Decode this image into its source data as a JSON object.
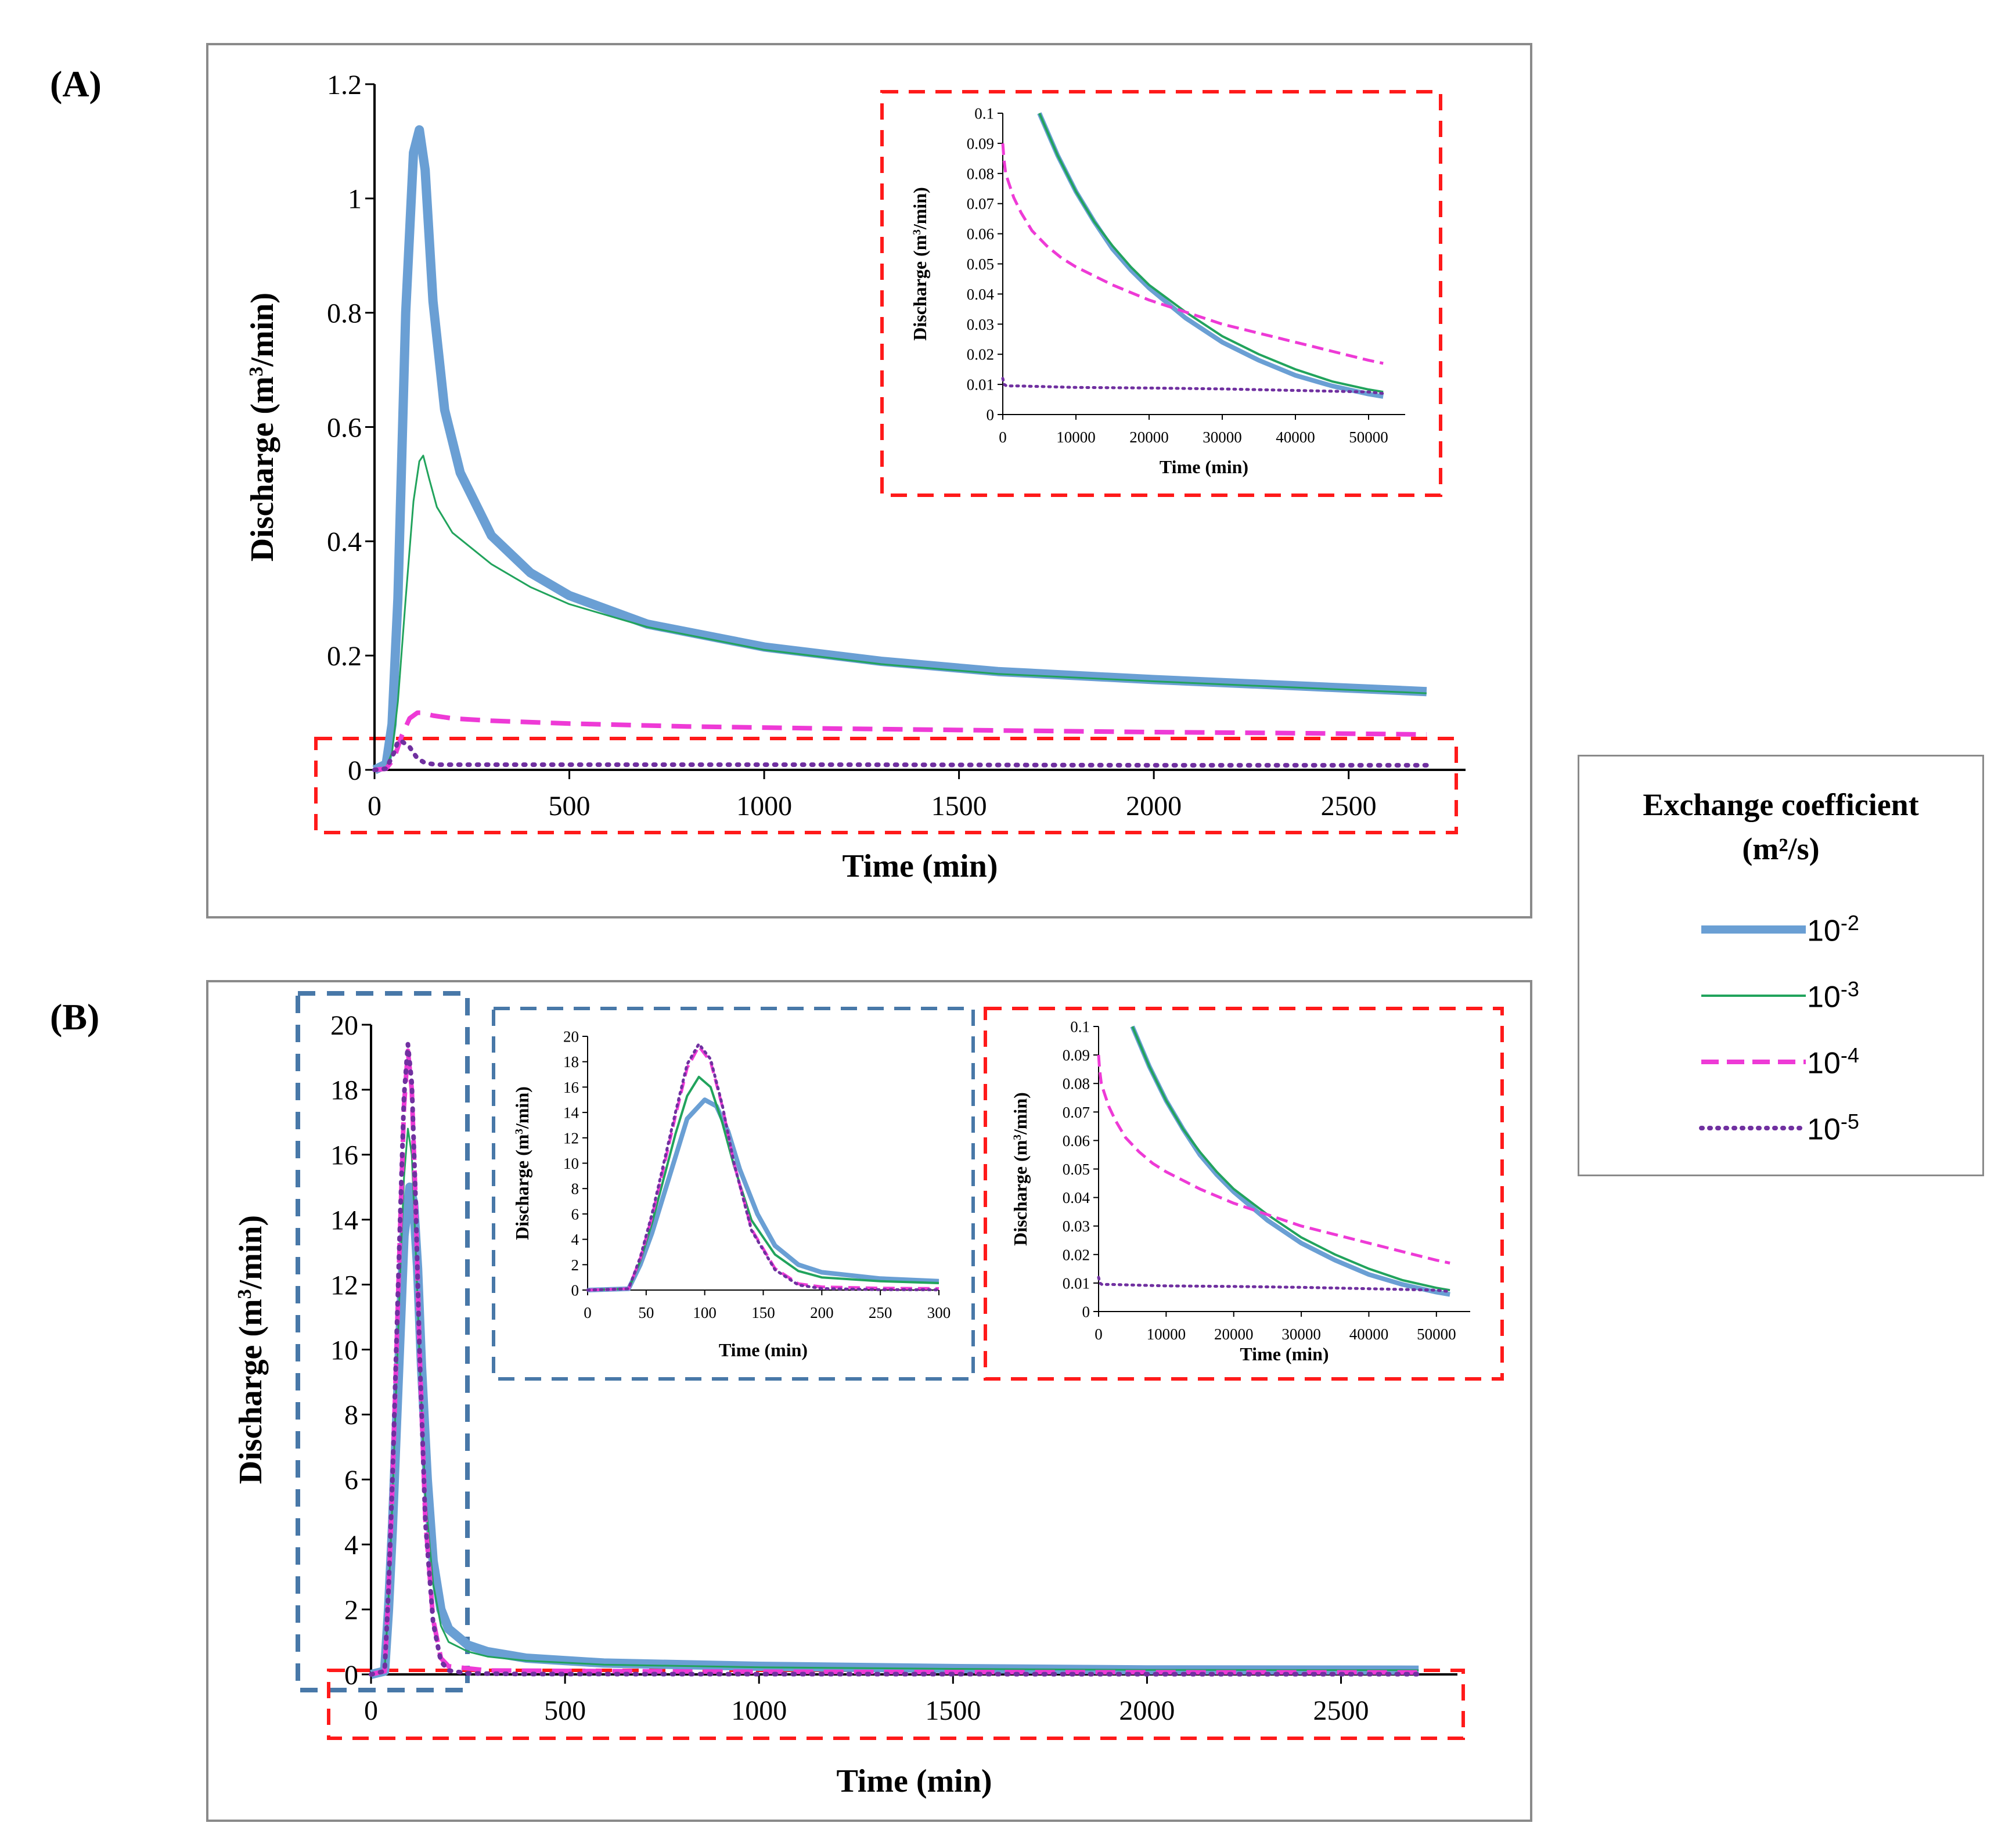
{
  "panel_labels": {
    "a": "(A)",
    "b": "(B)"
  },
  "legend": {
    "title_line1": "Exchange coefficient",
    "title_line2": "(m²/s)",
    "entries": [
      {
        "base": "10",
        "exp": "-2"
      },
      {
        "base": "10",
        "exp": "-3"
      },
      {
        "base": "10",
        "exp": "-4"
      },
      {
        "base": "10",
        "exp": "-5"
      }
    ]
  },
  "colors": {
    "series": [
      "#6a9fd4",
      "#21a35c",
      "#ee3ad6",
      "#7030a0"
    ],
    "highlight_red": "#ff1a1a",
    "highlight_blue": "#4878a8",
    "frame": "#8a8a8a"
  },
  "chart_data": [
    {
      "id": "A-main",
      "type": "line",
      "xlabel": "Time (min)",
      "ylabel": "Discharge (m³/min)",
      "xlim": [
        0,
        2800
      ],
      "ylim": [
        0,
        1.2
      ],
      "xticks": [
        0,
        500,
        1000,
        1500,
        2000,
        2500
      ],
      "yticks": [
        0,
        0.2,
        0.4,
        0.6,
        0.8,
        1,
        1.2
      ],
      "ytick_labels": [
        "0",
        "0.2",
        "0.4",
        "0.6",
        "0.8",
        "1",
        "1.2"
      ],
      "series": [
        {
          "name": "10^-2",
          "x": [
            0,
            30,
            45,
            60,
            80,
            100,
            115,
            130,
            150,
            180,
            220,
            300,
            400,
            500,
            700,
            1000,
            1300,
            1600,
            2000,
            2400,
            2700
          ],
          "y": [
            0,
            0.01,
            0.08,
            0.3,
            0.8,
            1.08,
            1.12,
            1.05,
            0.82,
            0.63,
            0.52,
            0.41,
            0.345,
            0.305,
            0.255,
            0.215,
            0.19,
            0.172,
            0.158,
            0.146,
            0.137
          ]
        },
        {
          "name": "10^-3",
          "x": [
            0,
            30,
            45,
            60,
            80,
            100,
            115,
            125,
            140,
            160,
            200,
            300,
            400,
            500,
            700,
            1000,
            1300,
            1600,
            2000,
            2400,
            2700
          ],
          "y": [
            0,
            0.005,
            0.03,
            0.12,
            0.3,
            0.47,
            0.54,
            0.55,
            0.51,
            0.46,
            0.415,
            0.36,
            0.32,
            0.29,
            0.25,
            0.21,
            0.185,
            0.168,
            0.155,
            0.143,
            0.134
          ]
        },
        {
          "name": "10^-4",
          "x": [
            0,
            30,
            50,
            70,
            90,
            110,
            120,
            150,
            200,
            300,
            500,
            800,
            1200,
            1600,
            2000,
            2400,
            2700
          ],
          "y": [
            0,
            0.002,
            0.02,
            0.06,
            0.09,
            0.1,
            0.1,
            0.095,
            0.09,
            0.086,
            0.081,
            0.076,
            0.072,
            0.069,
            0.066,
            0.064,
            0.062
          ]
        },
        {
          "name": "10^-5",
          "x": [
            0,
            30,
            50,
            60,
            70,
            80,
            90,
            100,
            110,
            130,
            160,
            200,
            600,
            1200,
            2000,
            2700
          ],
          "y": [
            0,
            0.002,
            0.03,
            0.05,
            0.05,
            0.045,
            0.04,
            0.03,
            0.02,
            0.012,
            0.009,
            0.009,
            0.009,
            0.009,
            0.008,
            0.008
          ]
        }
      ]
    },
    {
      "id": "A-inset",
      "type": "line",
      "xlabel": "Time (min)",
      "ylabel": "Discharge (m³/min)",
      "xlim": [
        0,
        55000
      ],
      "ylim": [
        0,
        0.1
      ],
      "xticks": [
        0,
        10000,
        20000,
        30000,
        40000,
        50000
      ],
      "yticks": [
        0,
        0.01,
        0.02,
        0.03,
        0.04,
        0.05,
        0.06,
        0.07,
        0.08,
        0.09,
        0.1
      ],
      "ytick_labels": [
        "0",
        "0.01",
        "0.02",
        "0.03",
        "0.04",
        "0.05",
        "0.06",
        "0.07",
        "0.08",
        "0.09",
        "0.1"
      ],
      "series": [
        {
          "name": "10^-2",
          "x": [
            5000,
            7500,
            10000,
            12500,
            15000,
            17500,
            20000,
            25000,
            30000,
            35000,
            40000,
            45000,
            50000,
            52000
          ],
          "y": [
            0.1,
            0.086,
            0.074,
            0.064,
            0.055,
            0.048,
            0.042,
            0.032,
            0.024,
            0.018,
            0.013,
            0.0095,
            0.0068,
            0.006
          ]
        },
        {
          "name": "10^-3",
          "x": [
            5000,
            7500,
            10000,
            12500,
            15000,
            17500,
            20000,
            25000,
            30000,
            35000,
            40000,
            45000,
            50000,
            52000
          ],
          "y": [
            0.1,
            0.086,
            0.074,
            0.064,
            0.056,
            0.049,
            0.043,
            0.034,
            0.026,
            0.02,
            0.015,
            0.011,
            0.0083,
            0.0075
          ]
        },
        {
          "name": "10^-4",
          "x": [
            0,
            150,
            400,
            800,
            1500,
            2500,
            4000,
            6000,
            8000,
            10000,
            15000,
            20000,
            25000,
            30000,
            35000,
            40000,
            45000,
            50000,
            52000
          ],
          "y": [
            0.09,
            0.085,
            0.08,
            0.077,
            0.072,
            0.067,
            0.061,
            0.056,
            0.052,
            0.049,
            0.043,
            0.038,
            0.034,
            0.03,
            0.027,
            0.024,
            0.021,
            0.018,
            0.017
          ]
        },
        {
          "name": "10^-5",
          "x": [
            0,
            200,
            500,
            2000,
            10000,
            20000,
            30000,
            40000,
            50000,
            52000
          ],
          "y": [
            0.012,
            0.01,
            0.0095,
            0.0095,
            0.009,
            0.0088,
            0.0085,
            0.008,
            0.0075,
            0.007
          ]
        }
      ]
    },
    {
      "id": "B-main",
      "type": "line",
      "xlabel": "Time (min)",
      "ylabel": "Discharge (m³/min)",
      "xlim": [
        0,
        2800
      ],
      "ylim": [
        0,
        20
      ],
      "xticks": [
        0,
        500,
        1000,
        1500,
        2000,
        2500
      ],
      "yticks": [
        0,
        2,
        4,
        6,
        8,
        10,
        12,
        14,
        16,
        18,
        20
      ],
      "ytick_labels": [
        "0",
        "2",
        "4",
        "6",
        "8",
        "10",
        "12",
        "14",
        "16",
        "18",
        "20"
      ],
      "series": [
        {
          "name": "10^-2",
          "x": [
            0,
            35,
            45,
            55,
            65,
            75,
            85,
            100,
            110,
            120,
            130,
            145,
            160,
            180,
            200,
            250,
            300,
            400,
            600,
            1000,
            1500,
            2000,
            2700
          ],
          "y": [
            0,
            0.1,
            2,
            4.5,
            7.5,
            10.5,
            13.5,
            15,
            14.5,
            12.5,
            9.5,
            6,
            3.5,
            2,
            1.4,
            0.9,
            0.7,
            0.5,
            0.35,
            0.25,
            0.18,
            0.14,
            0.13
          ]
        },
        {
          "name": "10^-3",
          "x": [
            0,
            35,
            45,
            55,
            65,
            75,
            85,
            95,
            105,
            115,
            125,
            140,
            160,
            180,
            200,
            250,
            300,
            400,
            600,
            1000,
            1500,
            2000,
            2700
          ],
          "y": [
            0,
            0.1,
            2.3,
            5.3,
            8.8,
            12.3,
            15.3,
            16.8,
            16,
            13.2,
            9.8,
            5.5,
            2.8,
            1.5,
            1,
            0.7,
            0.55,
            0.42,
            0.3,
            0.22,
            0.17,
            0.14,
            0.13
          ]
        },
        {
          "name": "10^-4",
          "x": [
            0,
            35,
            45,
            55,
            65,
            75,
            85,
            95,
            105,
            115,
            125,
            140,
            160,
            180,
            200,
            300,
            600,
            1000,
            1500,
            2000,
            2700
          ],
          "y": [
            0,
            0.1,
            2.5,
            5.8,
            9.7,
            13.7,
            17.5,
            19.2,
            18,
            14.5,
            10,
            4.8,
            1.7,
            0.5,
            0.25,
            0.12,
            0.1,
            0.08,
            0.07,
            0.065,
            0.06
          ]
        },
        {
          "name": "10^-5",
          "x": [
            0,
            35,
            45,
            55,
            65,
            75,
            85,
            95,
            105,
            115,
            125,
            140,
            160,
            180,
            200,
            250,
            400,
            1000,
            2000,
            2700
          ],
          "y": [
            0,
            0.1,
            2.6,
            6,
            10,
            14,
            17.8,
            19.4,
            18.2,
            14.6,
            10,
            4.7,
            1.6,
            0.4,
            0.12,
            0.03,
            0.01,
            0.009,
            0.008,
            0.008
          ]
        }
      ]
    },
    {
      "id": "B-inset-left",
      "type": "line",
      "xlabel": "Time (min)",
      "ylabel": "Discharge (m³/min)",
      "xlim": [
        0,
        300
      ],
      "ylim": [
        0,
        20
      ],
      "xticks": [
        0,
        50,
        100,
        150,
        200,
        250,
        300
      ],
      "yticks": [
        0,
        2,
        4,
        6,
        8,
        10,
        12,
        14,
        16,
        18,
        20
      ],
      "ytick_labels": [
        "0",
        "2",
        "4",
        "6",
        "8",
        "10",
        "12",
        "14",
        "16",
        "18",
        "20"
      ],
      "series": [
        {
          "name": "10^-2",
          "x": [
            0,
            35,
            45,
            55,
            65,
            75,
            85,
            100,
            110,
            120,
            130,
            145,
            160,
            180,
            200,
            250,
            300
          ],
          "y": [
            0,
            0.1,
            2,
            4.5,
            7.5,
            10.5,
            13.5,
            15,
            14.5,
            12.5,
            9.5,
            6,
            3.5,
            2,
            1.4,
            0.9,
            0.7
          ]
        },
        {
          "name": "10^-3",
          "x": [
            0,
            35,
            45,
            55,
            65,
            75,
            85,
            95,
            105,
            115,
            125,
            140,
            160,
            180,
            200,
            250,
            300
          ],
          "y": [
            0,
            0.1,
            2.3,
            5.3,
            8.8,
            12.3,
            15.3,
            16.8,
            16,
            13.2,
            9.8,
            5.5,
            2.8,
            1.5,
            1,
            0.7,
            0.55
          ]
        },
        {
          "name": "10^-4",
          "x": [
            0,
            35,
            45,
            55,
            65,
            75,
            85,
            95,
            105,
            115,
            125,
            140,
            160,
            180,
            200,
            250,
            300
          ],
          "y": [
            0,
            0.1,
            2.5,
            5.8,
            9.7,
            13.7,
            17.5,
            19.2,
            18,
            14.5,
            10,
            4.8,
            1.7,
            0.5,
            0.25,
            0.15,
            0.12
          ]
        },
        {
          "name": "10^-5",
          "x": [
            0,
            35,
            45,
            55,
            65,
            75,
            85,
            95,
            105,
            115,
            125,
            140,
            160,
            180,
            200,
            250,
            300
          ],
          "y": [
            0,
            0.1,
            2.6,
            6,
            10,
            14,
            17.8,
            19.4,
            18.2,
            14.6,
            10,
            4.7,
            1.6,
            0.4,
            0.12,
            0.03,
            0.02
          ]
        }
      ]
    },
    {
      "id": "B-inset-right",
      "type": "line",
      "xlabel": "Time (min)",
      "ylabel": "Discharge (m³/min)",
      "xlim": [
        0,
        55000
      ],
      "ylim": [
        0,
        0.1
      ],
      "xticks": [
        0,
        10000,
        20000,
        30000,
        40000,
        50000
      ],
      "yticks": [
        0,
        0.01,
        0.02,
        0.03,
        0.04,
        0.05,
        0.06,
        0.07,
        0.08,
        0.09,
        0.1
      ],
      "ytick_labels": [
        "0",
        "0.01",
        "0.02",
        "0.03",
        "0.04",
        "0.05",
        "0.06",
        "0.07",
        "0.08",
        "0.09",
        "0.1"
      ],
      "series": [
        {
          "name": "10^-2",
          "x": [
            5000,
            7500,
            10000,
            12500,
            15000,
            17500,
            20000,
            25000,
            30000,
            35000,
            40000,
            45000,
            50000,
            52000
          ],
          "y": [
            0.1,
            0.086,
            0.074,
            0.064,
            0.055,
            0.048,
            0.042,
            0.032,
            0.024,
            0.018,
            0.013,
            0.0095,
            0.0068,
            0.006
          ]
        },
        {
          "name": "10^-3",
          "x": [
            5000,
            7500,
            10000,
            12500,
            15000,
            17500,
            20000,
            25000,
            30000,
            35000,
            40000,
            45000,
            50000,
            52000
          ],
          "y": [
            0.1,
            0.086,
            0.074,
            0.064,
            0.056,
            0.049,
            0.043,
            0.034,
            0.026,
            0.02,
            0.015,
            0.011,
            0.0083,
            0.0075
          ]
        },
        {
          "name": "10^-4",
          "x": [
            0,
            150,
            400,
            800,
            1500,
            2500,
            4000,
            6000,
            8000,
            10000,
            15000,
            20000,
            25000,
            30000,
            35000,
            40000,
            45000,
            50000,
            52000
          ],
          "y": [
            0.09,
            0.085,
            0.08,
            0.077,
            0.072,
            0.067,
            0.061,
            0.056,
            0.052,
            0.049,
            0.043,
            0.038,
            0.034,
            0.03,
            0.027,
            0.024,
            0.021,
            0.018,
            0.017
          ]
        },
        {
          "name": "10^-5",
          "x": [
            0,
            200,
            500,
            2000,
            10000,
            20000,
            30000,
            40000,
            50000,
            52000
          ],
          "y": [
            0.012,
            0.01,
            0.0095,
            0.0095,
            0.009,
            0.0088,
            0.0085,
            0.008,
            0.0075,
            0.007
          ]
        }
      ]
    }
  ]
}
